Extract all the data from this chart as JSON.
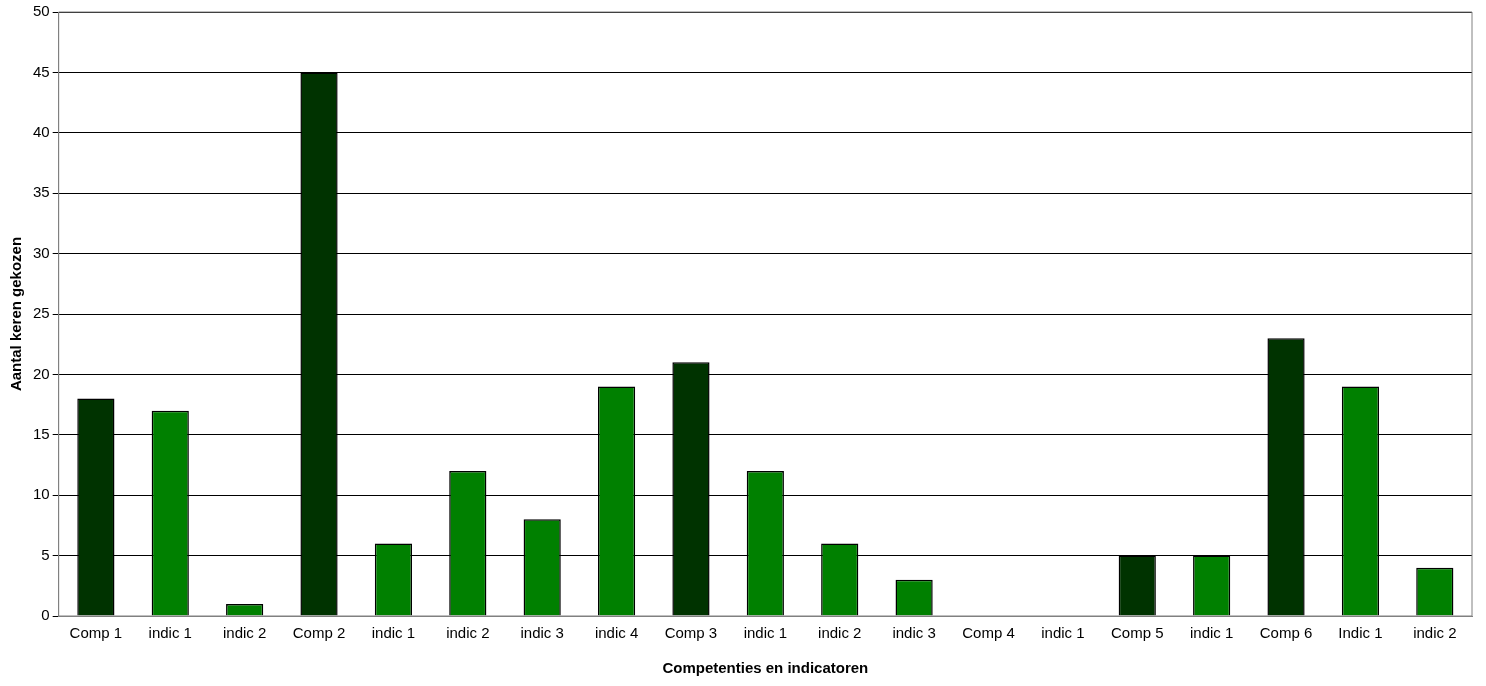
{
  "chart_data": {
    "type": "bar",
    "xlabel": "Competenties en indicatoren",
    "ylabel": "Aantal keren gekozen",
    "categories": [
      "Comp 1",
      "indic 1",
      "indic 2",
      "Comp 2",
      "indic 1",
      "indic 2",
      "indic 3",
      "indic 4",
      "Comp 3",
      "indic 1",
      "indic 2",
      "indic 3",
      "Comp 4",
      "indic 1",
      "Comp 5",
      "indic 1",
      "Comp 6",
      "Indic 1",
      "indic 2"
    ],
    "values": [
      18,
      17,
      1,
      45,
      6,
      12,
      8,
      19,
      21,
      12,
      6,
      3,
      0,
      0,
      5,
      5,
      23,
      19,
      4
    ],
    "colors": [
      "#003300",
      "#008000",
      "#008000",
      "#003300",
      "#008000",
      "#008000",
      "#008000",
      "#008000",
      "#003300",
      "#008000",
      "#008000",
      "#008000",
      "#003300",
      "#008000",
      "#003300",
      "#008000",
      "#003300",
      "#008000",
      "#008000"
    ],
    "ylim": [
      0,
      50
    ],
    "yticks": [
      0,
      5,
      10,
      15,
      20,
      25,
      30,
      35,
      40,
      45,
      50
    ],
    "grid": "y",
    "legend": false
  }
}
